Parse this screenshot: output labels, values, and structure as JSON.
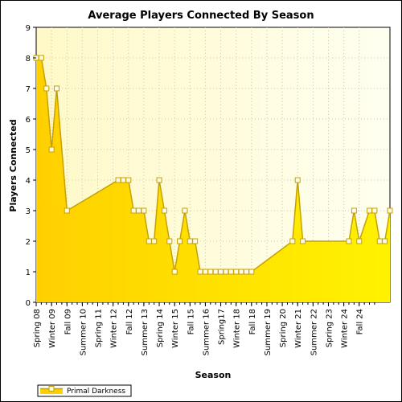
{
  "chart_data": {
    "type": "area",
    "title": "Average Players Connected By Season",
    "xlabel": "Season",
    "ylabel": "Players Connected",
    "ylim": [
      0,
      9
    ],
    "yticks": [
      0,
      1,
      2,
      3,
      4,
      5,
      6,
      7,
      8,
      9
    ],
    "grid": true,
    "legend_position": "bottom-left",
    "colors": {
      "area_top": "#ffe800",
      "area_bottom": "#ffd000",
      "line": "#c8a000",
      "marker_fill": "#fffbe8",
      "plot_background": "#fffde0"
    },
    "x_tick_labels": [
      "Spring 08",
      "Winter 09",
      "Fall 09",
      "Summer 10",
      "Spring 11",
      "Winter 12",
      "Fall 12",
      "Summer 13",
      "Spring 14",
      "Winter 15",
      "Fall 15",
      "Summer 16",
      "Spring17",
      "Winter 18",
      "Fall 18",
      "Summer 19",
      "Spring 20",
      "Winter 21",
      "Summer 22",
      "Spring 23",
      "Winter 24",
      "Fall 24"
    ],
    "x_tick_positions": [
      0,
      3,
      6,
      9,
      12,
      15,
      18,
      21,
      24,
      27,
      30,
      33,
      36,
      39,
      42,
      45,
      48,
      51,
      54,
      57,
      60,
      63
    ],
    "x_count": 66,
    "series": [
      {
        "name": "Primal Darkness",
        "points": [
          {
            "x": 0,
            "y": 8
          },
          {
            "x": 1,
            "y": 8
          },
          {
            "x": 2,
            "y": 7
          },
          {
            "x": 3,
            "y": 5
          },
          {
            "x": 4,
            "y": 7
          },
          {
            "x": 6,
            "y": 3
          },
          {
            "x": 16,
            "y": 4
          },
          {
            "x": 17,
            "y": 4
          },
          {
            "x": 18,
            "y": 4
          },
          {
            "x": 19,
            "y": 3
          },
          {
            "x": 20,
            "y": 3
          },
          {
            "x": 21,
            "y": 3
          },
          {
            "x": 22,
            "y": 2
          },
          {
            "x": 23,
            "y": 2
          },
          {
            "x": 24,
            "y": 4
          },
          {
            "x": 25,
            "y": 3
          },
          {
            "x": 26,
            "y": 2
          },
          {
            "x": 27,
            "y": 1
          },
          {
            "x": 28,
            "y": 2
          },
          {
            "x": 29,
            "y": 3
          },
          {
            "x": 30,
            "y": 2
          },
          {
            "x": 31,
            "y": 2
          },
          {
            "x": 32,
            "y": 1
          },
          {
            "x": 33,
            "y": 1
          },
          {
            "x": 34,
            "y": 1
          },
          {
            "x": 35,
            "y": 1
          },
          {
            "x": 36,
            "y": 1
          },
          {
            "x": 37,
            "y": 1
          },
          {
            "x": 38,
            "y": 1
          },
          {
            "x": 39,
            "y": 1
          },
          {
            "x": 40,
            "y": 1
          },
          {
            "x": 41,
            "y": 1
          },
          {
            "x": 42,
            "y": 1
          },
          {
            "x": 50,
            "y": 2
          },
          {
            "x": 51,
            "y": 4
          },
          {
            "x": 52,
            "y": 2
          },
          {
            "x": 61,
            "y": 2
          },
          {
            "x": 62,
            "y": 3
          },
          {
            "x": 63,
            "y": 2
          },
          {
            "x": 65,
            "y": 3
          },
          {
            "x": 66,
            "y": 3
          },
          {
            "x": 67,
            "y": 2
          },
          {
            "x": 68,
            "y": 2
          },
          {
            "x": 69,
            "y": 3
          }
        ]
      }
    ]
  }
}
